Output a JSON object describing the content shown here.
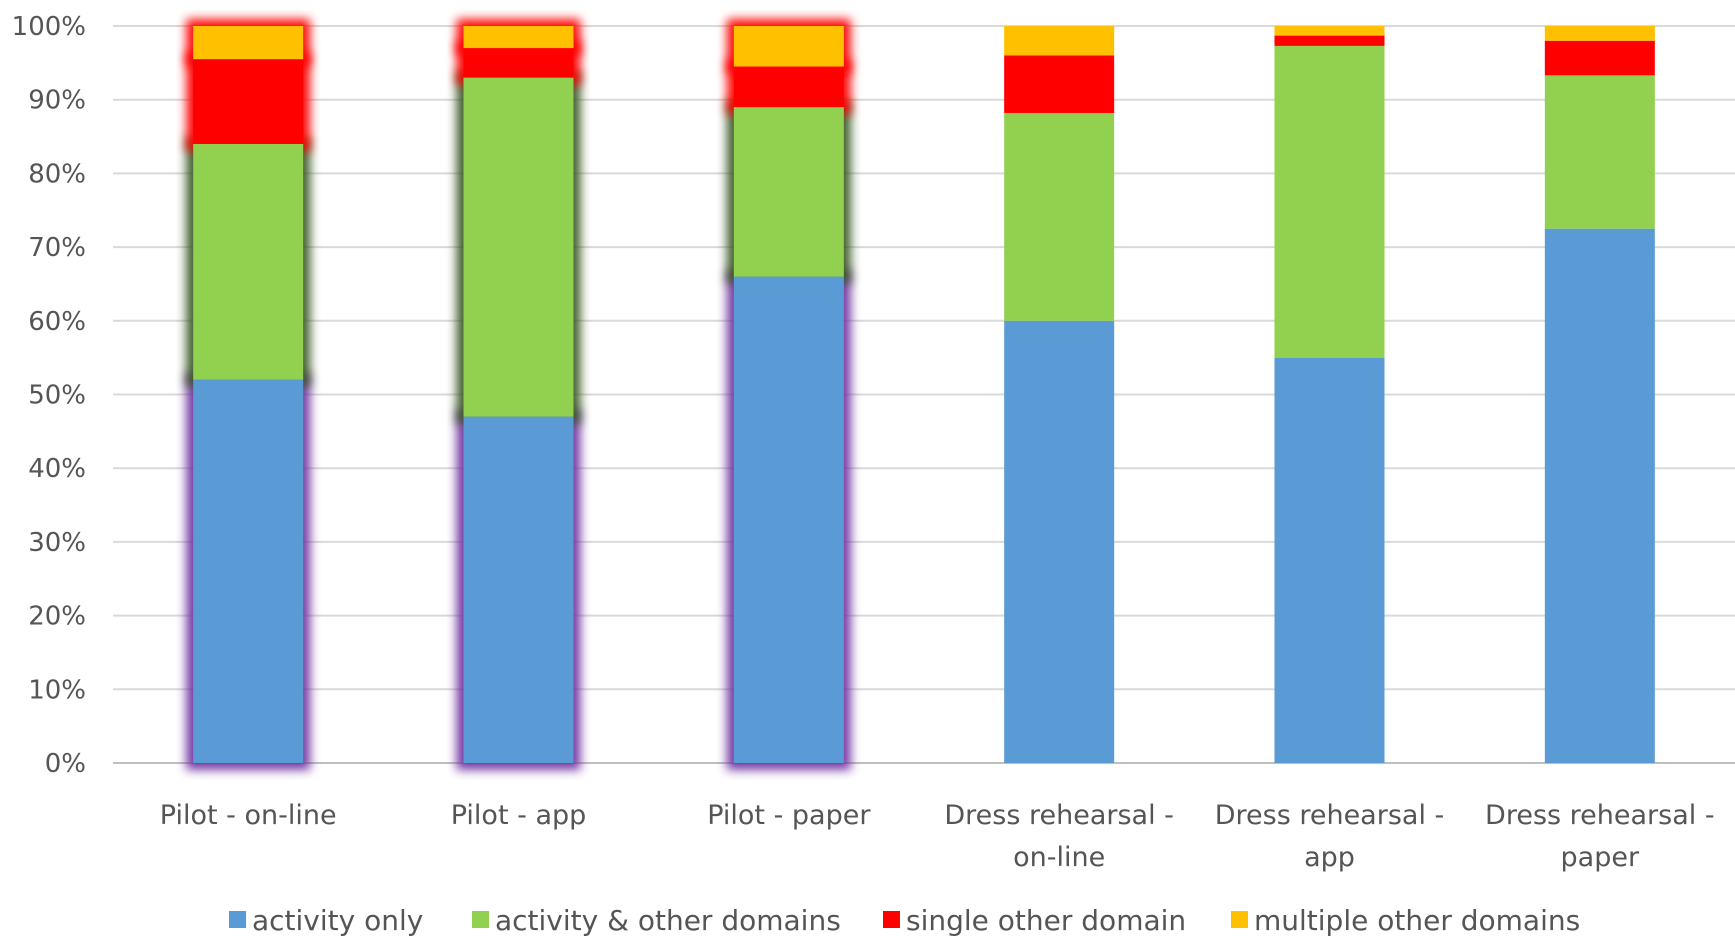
{
  "chart_data": {
    "type": "bar",
    "stacked": true,
    "normalized": true,
    "categories": [
      [
        "Pilot - on-line"
      ],
      [
        "Pilot - app"
      ],
      [
        "Pilot - paper"
      ],
      [
        "Dress rehearsal -",
        "on-line"
      ],
      [
        "Dress rehearsal -",
        "app"
      ],
      [
        "Dress rehearsal -",
        "paper"
      ]
    ],
    "series": [
      {
        "name": "activity only",
        "color": "#5b9bd5",
        "values": [
          52,
          47,
          66,
          60,
          55,
          72.5
        ]
      },
      {
        "name": "activity & other domains",
        "color": "#92d050",
        "values": [
          32,
          46,
          23,
          28.2,
          42.3,
          20.8
        ]
      },
      {
        "name": "single other domain",
        "color": "#ff0000",
        "values": [
          11.5,
          4,
          5.5,
          7.8,
          1.4,
          4.7
        ]
      },
      {
        "name": "multiple other domains",
        "color": "#ffc000",
        "values": [
          4.5,
          3,
          5.5,
          4,
          1.3,
          2
        ]
      }
    ],
    "highlighted_categories": [
      0,
      1,
      2
    ],
    "y_ticks": [
      "0%",
      "10%",
      "20%",
      "30%",
      "40%",
      "50%",
      "60%",
      "70%",
      "80%",
      "90%",
      "100%"
    ],
    "ylim": [
      0,
      100
    ],
    "grid": true,
    "legend_position": "bottom"
  }
}
